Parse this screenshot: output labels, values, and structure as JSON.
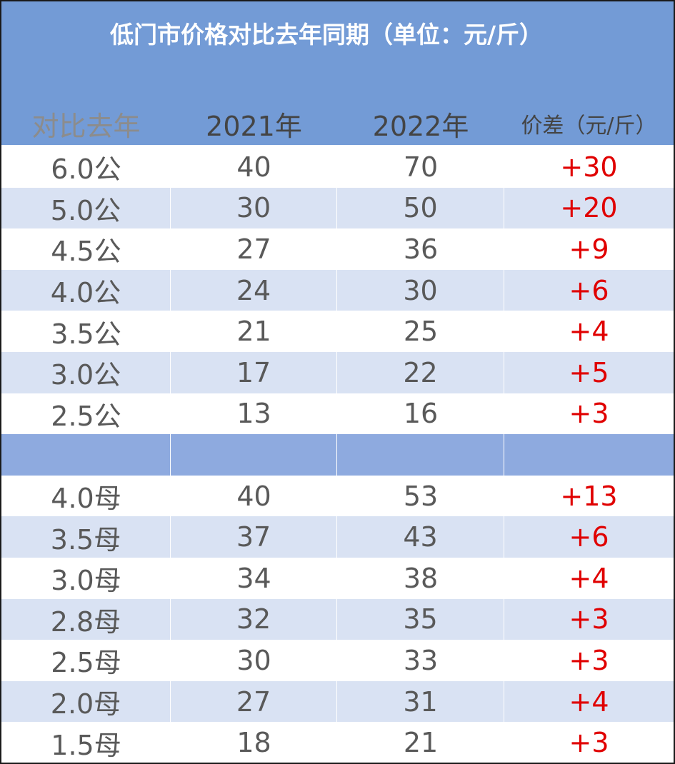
{
  "title": "低门市价格对比去年同期（单位：元/斤）",
  "headers": [
    "对比去年",
    "2021年",
    "2022年",
    "价差（元/斤）"
  ],
  "rows": [
    {
      "label": "6.0公",
      "y2021": "40",
      "y2022": "70",
      "diff": "+30"
    },
    {
      "label": "5.0公",
      "y2021": "30",
      "y2022": "50",
      "diff": "+20"
    },
    {
      "label": "4.5公",
      "y2021": "27",
      "y2022": "36",
      "diff": "+9"
    },
    {
      "label": "4.0公",
      "y2021": "24",
      "y2022": "30",
      "diff": "+6"
    },
    {
      "label": "3.5公",
      "y2021": "21",
      "y2022": "25",
      "diff": "+4"
    },
    {
      "label": "3.0公",
      "y2021": "17",
      "y2022": "22",
      "diff": "+5"
    },
    {
      "label": "2.5公",
      "y2021": "13",
      "y2022": "16",
      "diff": "+3"
    },
    {
      "separator": true
    },
    {
      "label": "4.0母",
      "y2021": "40",
      "y2022": "53",
      "diff": "+13"
    },
    {
      "label": "3.5母",
      "y2021": "37",
      "y2022": "43",
      "diff": "+6"
    },
    {
      "label": "3.0母",
      "y2021": "34",
      "y2022": "38",
      "diff": "+4"
    },
    {
      "label": "2.8母",
      "y2021": "32",
      "y2022": "35",
      "diff": "+3"
    },
    {
      "label": "2.5母",
      "y2021": "30",
      "y2022": "33",
      "diff": "+3"
    },
    {
      "label": "2.0母",
      "y2021": "27",
      "y2022": "31",
      "diff": "+4"
    },
    {
      "label": "1.5母",
      "y2021": "18",
      "y2022": "21",
      "diff": "+3"
    }
  ],
  "colors": {
    "header_bg": "#739bd6",
    "band_bg": "#d9e2f3",
    "separator_bg": "#8eaadf",
    "diff_text": "#e00000",
    "body_text": "#595959"
  }
}
